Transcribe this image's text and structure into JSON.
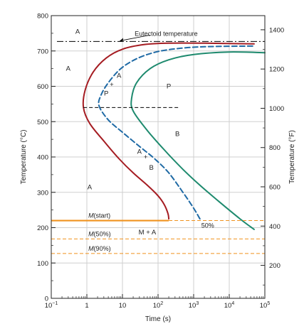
{
  "chart_data": {
    "type": "line",
    "xlabel": "Time (s)",
    "ylabel": "Temperature (°C)",
    "y2label": "Temperature (°F)",
    "xscale": "log",
    "xlim": [
      0.1,
      100000
    ],
    "ylim": [
      0,
      800
    ],
    "y2lim": [
      32,
      1472
    ],
    "grid": true,
    "x_ticks": [
      {
        "value": 0.1,
        "base": "10",
        "exp": "−1"
      },
      {
        "value": 1,
        "base": "1",
        "exp": ""
      },
      {
        "value": 10,
        "base": "10",
        "exp": ""
      },
      {
        "value": 100,
        "base": "10",
        "exp": "2"
      },
      {
        "value": 1000,
        "base": "10",
        "exp": "3"
      },
      {
        "value": 10000,
        "base": "10",
        "exp": "4"
      },
      {
        "value": 100000,
        "base": "10",
        "exp": "5"
      }
    ],
    "y_ticks": [
      "0",
      "100",
      "200",
      "300",
      "400",
      "500",
      "600",
      "700",
      "800"
    ],
    "y2_ticks": [
      "200",
      "400",
      "600",
      "800",
      "1000",
      "1200",
      "1400"
    ],
    "colors": {
      "start": "#a51c22",
      "finish": "#1e8a6e",
      "fifty": "#1f6aa5",
      "martensite": "#f0921e",
      "guide": "#000000",
      "grid": "#cfcfcf"
    },
    "eutectoid": {
      "label": "Eutectoid temperature",
      "temperature": 727
    },
    "series": [
      {
        "key": "start",
        "points": [
          [
            200,
            225
          ],
          [
            190,
            240
          ],
          [
            150,
            265
          ],
          [
            100,
            290
          ],
          [
            50,
            320
          ],
          [
            20,
            355
          ],
          [
            8,
            395
          ],
          [
            3,
            445
          ],
          [
            1.2,
            495
          ],
          [
            0.8,
            540
          ],
          [
            0.9,
            590
          ],
          [
            1.5,
            640
          ],
          [
            3.5,
            680
          ],
          [
            10,
            705
          ],
          [
            40,
            718
          ],
          [
            200,
            722
          ],
          [
            2000,
            722
          ],
          [
            50000,
            720
          ]
        ]
      },
      {
        "key": "fifty",
        "points": [
          [
            1500,
            225
          ],
          [
            1000,
            255
          ],
          [
            500,
            300
          ],
          [
            200,
            355
          ],
          [
            80,
            395
          ],
          [
            30,
            430
          ],
          [
            10,
            470
          ],
          [
            4,
            505
          ],
          [
            2.2,
            545
          ],
          [
            2.5,
            575
          ],
          [
            4,
            610
          ],
          [
            9,
            650
          ],
          [
            25,
            678
          ],
          [
            80,
            696
          ],
          [
            300,
            706
          ],
          [
            2000,
            712
          ],
          [
            50000,
            714
          ]
        ]
      },
      {
        "key": "finish",
        "points": [
          [
            50000,
            195
          ],
          [
            20000,
            225
          ],
          [
            5000,
            275
          ],
          [
            1500,
            320
          ],
          [
            500,
            365
          ],
          [
            150,
            420
          ],
          [
            50,
            475
          ],
          [
            20,
            530
          ],
          [
            18,
            565
          ],
          [
            25,
            610
          ],
          [
            60,
            650
          ],
          [
            200,
            675
          ],
          [
            1000,
            690
          ],
          [
            10000,
            697
          ],
          [
            100000,
            695
          ]
        ]
      }
    ],
    "martensite_lines": [
      {
        "label": "M(start)",
        "label_sym": "M",
        "label_rest": "(start)",
        "temperature": 220,
        "solid_until": 200
      },
      {
        "label": "M(50%)",
        "label_sym": "M",
        "label_rest": "(50%)",
        "temperature": 168
      },
      {
        "label": "M(90%)",
        "label_sym": "M",
        "label_rest": "(90%)",
        "temperature": 127
      }
    ],
    "nose_line": {
      "temperature": 540,
      "x_from": 0.8,
      "x_to": 400
    },
    "pct_label": {
      "text": "50%",
      "x": 1500,
      "y": 200
    },
    "regions": [
      {
        "text": "A",
        "x": 0.55,
        "y": 755
      },
      {
        "text": "A",
        "x": 0.3,
        "y": 650
      },
      {
        "text": "A",
        "x": 1.2,
        "y": 315
      },
      {
        "text": "P",
        "x": 200,
        "y": 600
      },
      {
        "text": "P",
        "x": 3.5,
        "y": 580
      },
      {
        "text": "A",
        "x": 8,
        "y": 630
      },
      {
        "text": "+",
        "x": 5,
        "y": 605
      },
      {
        "text": "B",
        "x": 350,
        "y": 465
      },
      {
        "text": "A",
        "x": 30,
        "y": 415
      },
      {
        "text": "+",
        "x": 45,
        "y": 400
      },
      {
        "text": "B",
        "x": 65,
        "y": 370
      },
      {
        "text": "M + A",
        "x": 50,
        "y": 187
      }
    ]
  }
}
